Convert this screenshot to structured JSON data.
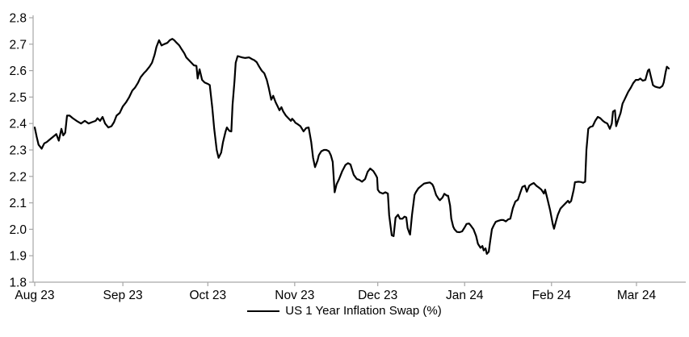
{
  "chart_data": {
    "type": "line",
    "title": "",
    "background_color": "#ffffff",
    "axis_color": "#a6a6a6",
    "text_color": "#000000",
    "legend": {
      "position": "bottom-center"
    },
    "y_axis": {
      "min": 1.8,
      "max": 2.8,
      "tick_step": 0.1,
      "tick_labels": [
        "2.8",
        "2.7",
        "2.6",
        "2.5",
        "2.4",
        "2.3",
        "2.2",
        "2.1",
        "2.0",
        "1.9",
        "1.8"
      ]
    },
    "x_axis": {
      "start": "Aug 2023",
      "end": "Mar 2024",
      "ticks": [
        {
          "label": "Aug 23",
          "pos": 0.0
        },
        {
          "label": "Sep 23",
          "pos": 0.139
        },
        {
          "label": "Oct 23",
          "pos": 0.273
        },
        {
          "label": "Nov 23",
          "pos": 0.41
        },
        {
          "label": "Dec 23",
          "pos": 0.541
        },
        {
          "label": "Jan 24",
          "pos": 0.678
        },
        {
          "label": "Feb 24",
          "pos": 0.815
        },
        {
          "label": "Mar 24",
          "pos": 0.949
        }
      ]
    },
    "series": [
      {
        "name": "US 1 Year Inflation Swap (%)",
        "color": "#000000",
        "points": [
          [
            0.0,
            2.385
          ],
          [
            0.003,
            2.35
          ],
          [
            0.006,
            2.32
          ],
          [
            0.011,
            2.305
          ],
          [
            0.015,
            2.325
          ],
          [
            0.019,
            2.33
          ],
          [
            0.024,
            2.34
          ],
          [
            0.029,
            2.35
          ],
          [
            0.034,
            2.36
          ],
          [
            0.038,
            2.335
          ],
          [
            0.042,
            2.38
          ],
          [
            0.045,
            2.355
          ],
          [
            0.048,
            2.365
          ],
          [
            0.051,
            2.43
          ],
          [
            0.055,
            2.43
          ],
          [
            0.06,
            2.42
          ],
          [
            0.066,
            2.41
          ],
          [
            0.073,
            2.4
          ],
          [
            0.079,
            2.41
          ],
          [
            0.085,
            2.4
          ],
          [
            0.09,
            2.405
          ],
          [
            0.096,
            2.41
          ],
          [
            0.099,
            2.42
          ],
          [
            0.103,
            2.41
          ],
          [
            0.107,
            2.425
          ],
          [
            0.111,
            2.4
          ],
          [
            0.116,
            2.385
          ],
          [
            0.121,
            2.39
          ],
          [
            0.125,
            2.405
          ],
          [
            0.129,
            2.43
          ],
          [
            0.134,
            2.44
          ],
          [
            0.139,
            2.465
          ],
          [
            0.144,
            2.48
          ],
          [
            0.149,
            2.5
          ],
          [
            0.154,
            2.525
          ],
          [
            0.158,
            2.535
          ],
          [
            0.163,
            2.555
          ],
          [
            0.167,
            2.575
          ],
          [
            0.172,
            2.59
          ],
          [
            0.176,
            2.6
          ],
          [
            0.181,
            2.615
          ],
          [
            0.185,
            2.63
          ],
          [
            0.189,
            2.66
          ],
          [
            0.192,
            2.69
          ],
          [
            0.196,
            2.715
          ],
          [
            0.2,
            2.695
          ],
          [
            0.204,
            2.7
          ],
          [
            0.209,
            2.705
          ],
          [
            0.213,
            2.715
          ],
          [
            0.217,
            2.72
          ],
          [
            0.22,
            2.715
          ],
          [
            0.224,
            2.705
          ],
          [
            0.228,
            2.695
          ],
          [
            0.232,
            2.68
          ],
          [
            0.236,
            2.665
          ],
          [
            0.239,
            2.65
          ],
          [
            0.243,
            2.64
          ],
          [
            0.247,
            2.63
          ],
          [
            0.251,
            2.62
          ],
          [
            0.255,
            2.618
          ],
          [
            0.257,
            2.57
          ],
          [
            0.26,
            2.605
          ],
          [
            0.264,
            2.565
          ],
          [
            0.268,
            2.555
          ],
          [
            0.273,
            2.55
          ],
          [
            0.276,
            2.545
          ],
          [
            0.28,
            2.46
          ],
          [
            0.283,
            2.38
          ],
          [
            0.287,
            2.3
          ],
          [
            0.29,
            2.27
          ],
          [
            0.294,
            2.29
          ],
          [
            0.297,
            2.33
          ],
          [
            0.301,
            2.37
          ],
          [
            0.303,
            2.385
          ],
          [
            0.307,
            2.372
          ],
          [
            0.31,
            2.37
          ],
          [
            0.312,
            2.47
          ],
          [
            0.315,
            2.56
          ],
          [
            0.317,
            2.63
          ],
          [
            0.32,
            2.655
          ],
          [
            0.324,
            2.652
          ],
          [
            0.327,
            2.65
          ],
          [
            0.332,
            2.648
          ],
          [
            0.338,
            2.65
          ],
          [
            0.343,
            2.643
          ],
          [
            0.346,
            2.64
          ],
          [
            0.35,
            2.632
          ],
          [
            0.354,
            2.615
          ],
          [
            0.358,
            2.6
          ],
          [
            0.362,
            2.59
          ],
          [
            0.366,
            2.565
          ],
          [
            0.369,
            2.535
          ],
          [
            0.373,
            2.49
          ],
          [
            0.376,
            2.505
          ],
          [
            0.38,
            2.48
          ],
          [
            0.383,
            2.465
          ],
          [
            0.386,
            2.45
          ],
          [
            0.389,
            2.462
          ],
          [
            0.392,
            2.445
          ],
          [
            0.396,
            2.43
          ],
          [
            0.4,
            2.42
          ],
          [
            0.404,
            2.41
          ],
          [
            0.406,
            2.418
          ],
          [
            0.409,
            2.41
          ],
          [
            0.411,
            2.403
          ],
          [
            0.415,
            2.397
          ],
          [
            0.419,
            2.39
          ],
          [
            0.422,
            2.378
          ],
          [
            0.424,
            2.37
          ],
          [
            0.428,
            2.383
          ],
          [
            0.432,
            2.385
          ],
          [
            0.436,
            2.33
          ],
          [
            0.439,
            2.27
          ],
          [
            0.442,
            2.235
          ],
          [
            0.446,
            2.26
          ],
          [
            0.448,
            2.28
          ],
          [
            0.452,
            2.295
          ],
          [
            0.456,
            2.3
          ],
          [
            0.46,
            2.3
          ],
          [
            0.464,
            2.295
          ],
          [
            0.467,
            2.28
          ],
          [
            0.47,
            2.255
          ],
          [
            0.473,
            2.14
          ],
          [
            0.476,
            2.17
          ],
          [
            0.48,
            2.19
          ],
          [
            0.485,
            2.22
          ],
          [
            0.49,
            2.243
          ],
          [
            0.494,
            2.25
          ],
          [
            0.498,
            2.245
          ],
          [
            0.503,
            2.206
          ],
          [
            0.508,
            2.19
          ],
          [
            0.512,
            2.187
          ],
          [
            0.516,
            2.18
          ],
          [
            0.521,
            2.19
          ],
          [
            0.525,
            2.217
          ],
          [
            0.529,
            2.23
          ],
          [
            0.534,
            2.22
          ],
          [
            0.538,
            2.205
          ],
          [
            0.54,
            2.195
          ],
          [
            0.541,
            2.15
          ],
          [
            0.544,
            2.14
          ],
          [
            0.549,
            2.135
          ],
          [
            0.553,
            2.14
          ],
          [
            0.557,
            2.135
          ],
          [
            0.559,
            2.053
          ],
          [
            0.563,
            1.977
          ],
          [
            0.566,
            1.974
          ],
          [
            0.569,
            2.044
          ],
          [
            0.573,
            2.055
          ],
          [
            0.576,
            2.04
          ],
          [
            0.58,
            2.04
          ],
          [
            0.583,
            2.048
          ],
          [
            0.586,
            2.045
          ],
          [
            0.588,
            2.005
          ],
          [
            0.591,
            1.985
          ],
          [
            0.592,
            1.98
          ],
          [
            0.595,
            2.055
          ],
          [
            0.599,
            2.13
          ],
          [
            0.601,
            2.14
          ],
          [
            0.605,
            2.155
          ],
          [
            0.61,
            2.165
          ],
          [
            0.614,
            2.173
          ],
          [
            0.618,
            2.175
          ],
          [
            0.623,
            2.177
          ],
          [
            0.627,
            2.17
          ],
          [
            0.629,
            2.16
          ],
          [
            0.633,
            2.13
          ],
          [
            0.637,
            2.115
          ],
          [
            0.639,
            2.11
          ],
          [
            0.643,
            2.12
          ],
          [
            0.646,
            2.134
          ],
          [
            0.65,
            2.127
          ],
          [
            0.652,
            2.127
          ],
          [
            0.655,
            2.09
          ],
          [
            0.657,
            2.04
          ],
          [
            0.66,
            2.01
          ],
          [
            0.662,
            2.0
          ],
          [
            0.666,
            1.99
          ],
          [
            0.67,
            1.989
          ],
          [
            0.674,
            1.992
          ],
          [
            0.678,
            2.007
          ],
          [
            0.681,
            2.02
          ],
          [
            0.685,
            2.022
          ],
          [
            0.688,
            2.013
          ],
          [
            0.692,
            2.0
          ],
          [
            0.696,
            1.975
          ],
          [
            0.699,
            1.945
          ],
          [
            0.703,
            1.93
          ],
          [
            0.706,
            1.937
          ],
          [
            0.708,
            1.92
          ],
          [
            0.711,
            1.928
          ],
          [
            0.713,
            1.907
          ],
          [
            0.716,
            1.915
          ],
          [
            0.718,
            1.95
          ],
          [
            0.721,
            2.0
          ],
          [
            0.724,
            2.015
          ],
          [
            0.727,
            2.028
          ],
          [
            0.731,
            2.032
          ],
          [
            0.735,
            2.035
          ],
          [
            0.739,
            2.035
          ],
          [
            0.743,
            2.03
          ],
          [
            0.747,
            2.038
          ],
          [
            0.75,
            2.04
          ],
          [
            0.754,
            2.08
          ],
          [
            0.758,
            2.105
          ],
          [
            0.762,
            2.112
          ],
          [
            0.766,
            2.14
          ],
          [
            0.769,
            2.16
          ],
          [
            0.773,
            2.165
          ],
          [
            0.776,
            2.142
          ],
          [
            0.78,
            2.165
          ],
          [
            0.783,
            2.17
          ],
          [
            0.787,
            2.175
          ],
          [
            0.791,
            2.165
          ],
          [
            0.795,
            2.158
          ],
          [
            0.799,
            2.15
          ],
          [
            0.803,
            2.135
          ],
          [
            0.805,
            2.15
          ],
          [
            0.809,
            2.11
          ],
          [
            0.813,
            2.07
          ],
          [
            0.817,
            2.02
          ],
          [
            0.819,
            2.002
          ],
          [
            0.822,
            2.03
          ],
          [
            0.825,
            2.055
          ],
          [
            0.829,
            2.078
          ],
          [
            0.833,
            2.088
          ],
          [
            0.837,
            2.098
          ],
          [
            0.841,
            2.108
          ],
          [
            0.843,
            2.1
          ],
          [
            0.846,
            2.107
          ],
          [
            0.85,
            2.15
          ],
          [
            0.852,
            2.178
          ],
          [
            0.857,
            2.18
          ],
          [
            0.861,
            2.179
          ],
          [
            0.865,
            2.176
          ],
          [
            0.868,
            2.18
          ],
          [
            0.87,
            2.3
          ],
          [
            0.873,
            2.38
          ],
          [
            0.876,
            2.387
          ],
          [
            0.88,
            2.39
          ],
          [
            0.884,
            2.41
          ],
          [
            0.888,
            2.425
          ],
          [
            0.892,
            2.42
          ],
          [
            0.896,
            2.41
          ],
          [
            0.899,
            2.405
          ],
          [
            0.903,
            2.4
          ],
          [
            0.907,
            2.38
          ],
          [
            0.91,
            2.4
          ],
          [
            0.912,
            2.445
          ],
          [
            0.915,
            2.45
          ],
          [
            0.917,
            2.39
          ],
          [
            0.921,
            2.42
          ],
          [
            0.924,
            2.44
          ],
          [
            0.927,
            2.475
          ],
          [
            0.93,
            2.49
          ],
          [
            0.934,
            2.51
          ],
          [
            0.936,
            2.52
          ],
          [
            0.94,
            2.535
          ],
          [
            0.944,
            2.553
          ],
          [
            0.948,
            2.565
          ],
          [
            0.952,
            2.565
          ],
          [
            0.955,
            2.57
          ],
          [
            0.959,
            2.562
          ],
          [
            0.963,
            2.565
          ],
          [
            0.967,
            2.6
          ],
          [
            0.969,
            2.605
          ],
          [
            0.972,
            2.575
          ],
          [
            0.975,
            2.545
          ],
          [
            0.978,
            2.54
          ],
          [
            0.982,
            2.537
          ],
          [
            0.986,
            2.535
          ],
          [
            0.99,
            2.542
          ],
          [
            0.992,
            2.555
          ],
          [
            0.995,
            2.595
          ],
          [
            0.997,
            2.615
          ],
          [
            1.0,
            2.608
          ]
        ]
      }
    ]
  }
}
